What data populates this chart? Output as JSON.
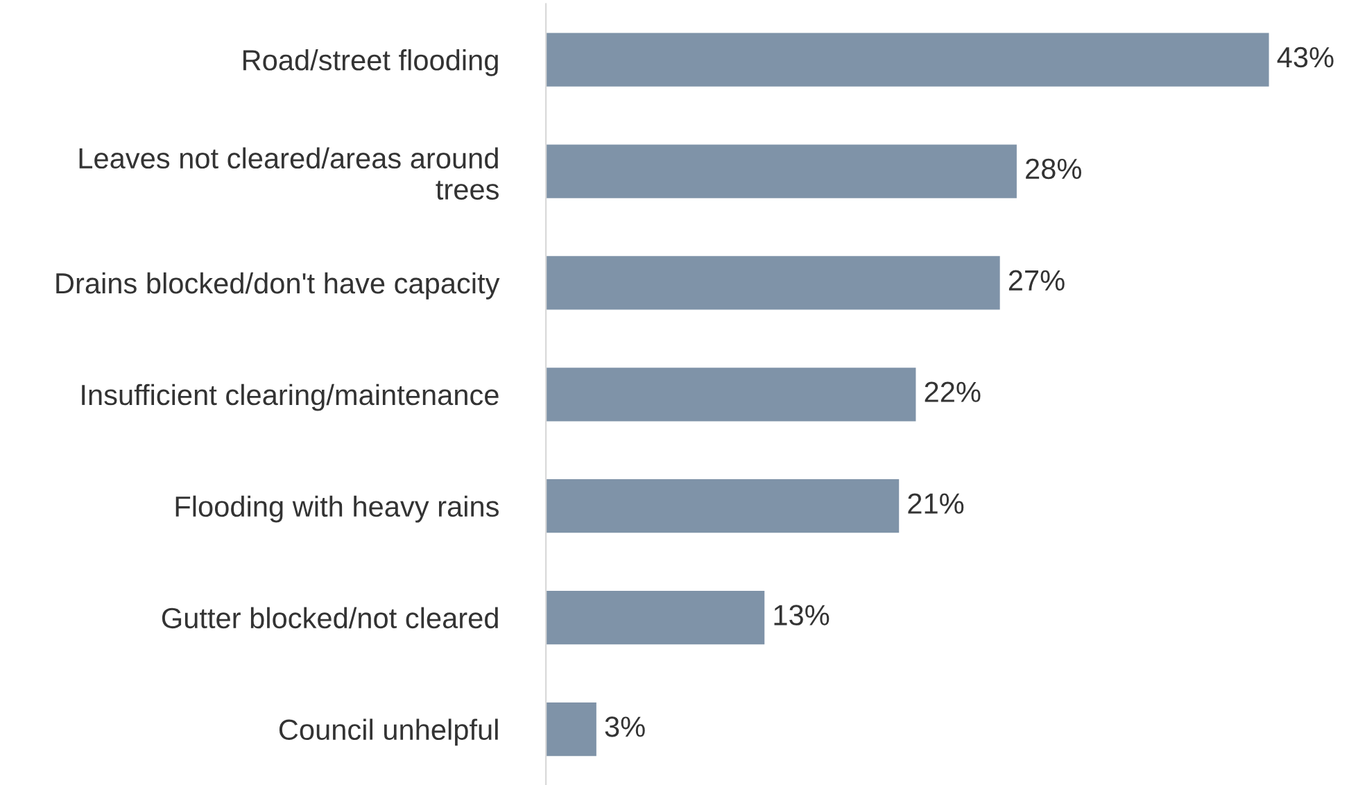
{
  "chart_data": {
    "type": "bar",
    "orientation": "horizontal",
    "categories": [
      "Road/street flooding",
      "Leaves not cleared/areas around\ntrees",
      "Drains blocked/don't have capacity",
      "Insufficient clearing/maintenance",
      "Flooding with heavy rains",
      "Gutter blocked/not cleared",
      "Council unhelpful"
    ],
    "values": [
      43,
      28,
      27,
      22,
      21,
      13,
      3
    ],
    "value_labels": [
      "43%",
      "28%",
      "27%",
      "22%",
      "21%",
      "13%",
      "3%"
    ],
    "color": "#7f93a8",
    "grid": false,
    "legend": false
  }
}
